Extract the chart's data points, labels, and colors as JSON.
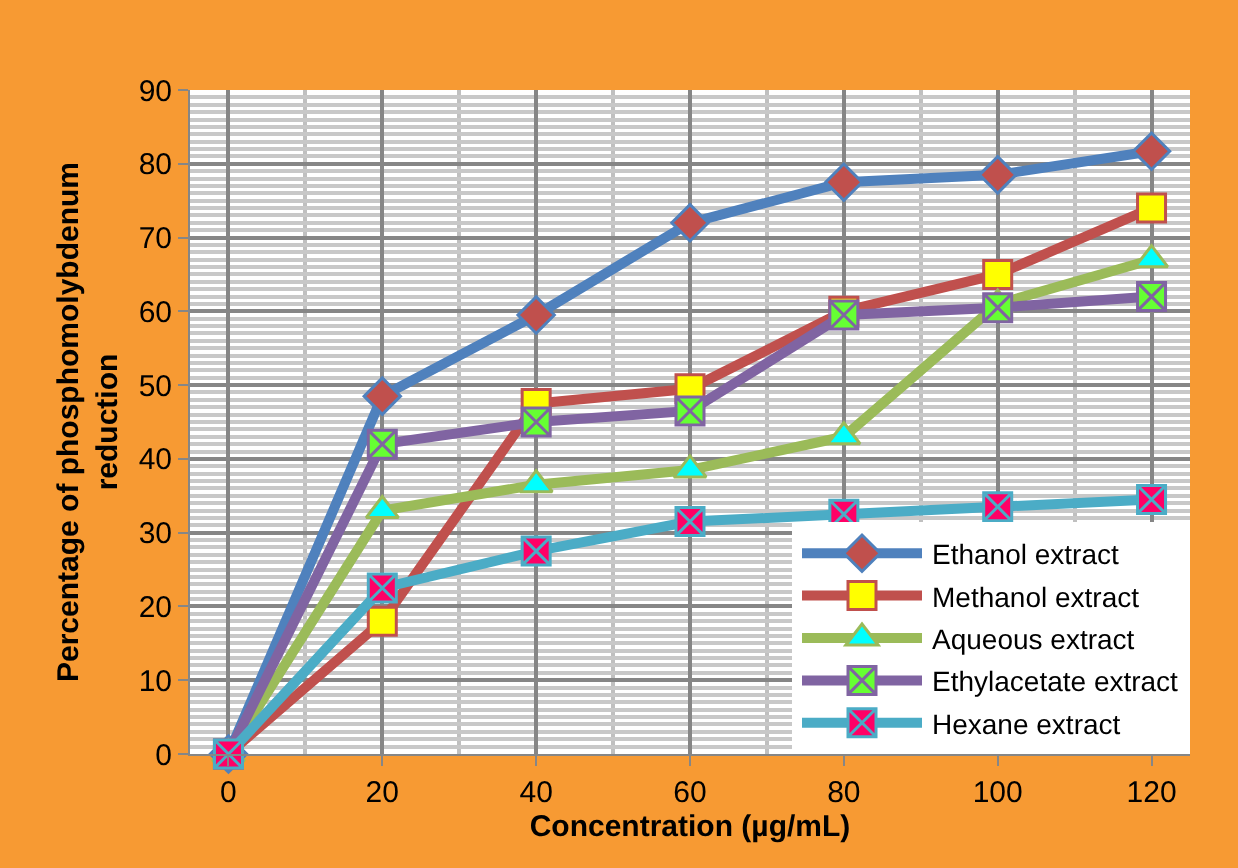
{
  "chart_data": {
    "type": "line",
    "xlabel": "Concentration (µg/mL)",
    "ylabel": "Percentage of phosphomolybdenum reduction",
    "x": [
      0,
      20,
      40,
      60,
      80,
      100,
      120
    ],
    "xlim": [
      -5,
      125
    ],
    "xticks": [
      0,
      20,
      40,
      60,
      80,
      100,
      120
    ],
    "ylim": [
      0,
      90
    ],
    "yticks": [
      0,
      10,
      20,
      30,
      40,
      50,
      60,
      70,
      80,
      90
    ],
    "grid": true,
    "legend": "bottom right",
    "series": [
      {
        "name": "Ethanol extract",
        "color": "#4f81bd",
        "marker": "diamond",
        "colors": [
          "#c0504d",
          "#c0504d",
          "#c0504d",
          "#c0504d",
          "#c0504d",
          "#c0504d",
          "#c0504d"
        ],
        "values": [
          0,
          48.5,
          59.5,
          72,
          77.5,
          78.5,
          81.7
        ]
      },
      {
        "name": "Methanol extract",
        "color": "#c0504d",
        "marker": "square",
        "colors": [
          "#ffff00",
          "#ffff00",
          "#ffff00",
          "#ffff00",
          "#ffff00",
          "#ffff00",
          "#ffff00"
        ],
        "values": [
          0,
          18,
          47.5,
          49.5,
          60,
          65,
          74
        ]
      },
      {
        "name": "Aqueous extract",
        "color": "#9bbb59",
        "marker": "triangle",
        "colors": [
          "#00ffff",
          "#00ffff",
          "#00ffff",
          "#00ffff",
          "#00ffff",
          "#00ffff",
          "#00ffff"
        ],
        "values": [
          0,
          33,
          36.5,
          38.5,
          43,
          61,
          67
        ]
      },
      {
        "name": "Ethylacetate extract",
        "color": "#8064a2",
        "marker": "cross",
        "colors": [
          "#66ff33",
          "#66ff33",
          "#66ff33",
          "#66ff33",
          "#66ff33",
          "#66ff33",
          "#66ff33"
        ],
        "values": [
          0,
          42,
          45,
          46.5,
          59.5,
          60.5,
          62
        ]
      },
      {
        "name": "Hexane extract",
        "color": "#4bacc6",
        "marker": "cross",
        "colors": [
          "#ff0066",
          "#ff0066",
          "#ff0066",
          "#ff0066",
          "#ff0066",
          "#ff0066",
          "#ff0066"
        ],
        "values": [
          0,
          22.5,
          27.5,
          31.5,
          32.5,
          33.5,
          34.5
        ]
      }
    ]
  }
}
